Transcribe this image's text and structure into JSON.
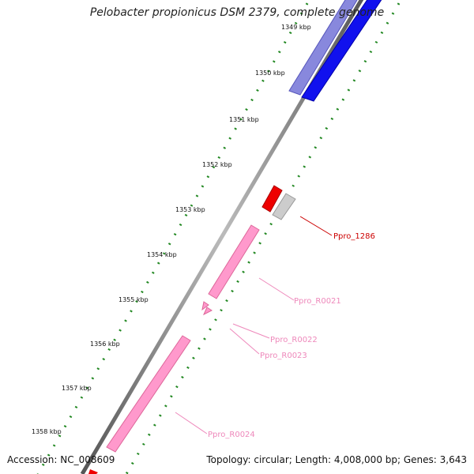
{
  "title": "Pelobacter propionicus DSM 2379, complete genome",
  "accession": "Accession: NC_008609",
  "summary": "Topology: circular; Length: 4,008,000 bp; Genes: 3,643",
  "ticks": [
    {
      "label": "1349 kbp"
    },
    {
      "label": "1350 kbp"
    },
    {
      "label": "1351 kbp"
    },
    {
      "label": "1352 kbp"
    },
    {
      "label": "1353 kbp"
    },
    {
      "label": "1354 kbp"
    },
    {
      "label": "1355 kbp"
    },
    {
      "label": "1356 kbp"
    },
    {
      "label": "1357 kbp"
    },
    {
      "label": "1358 kbp"
    }
  ],
  "feature_labels": [
    {
      "label": "Ppro_1286",
      "color": "#cc0000"
    },
    {
      "label": "Ppro_R0021",
      "color": "#ee88bb"
    },
    {
      "label": "Ppro_R0022",
      "color": "#ee88bb"
    },
    {
      "label": "Ppro_R0023",
      "color": "#ee88bb"
    },
    {
      "label": "Ppro_R0024",
      "color": "#ee88bb"
    }
  ],
  "colors": {
    "backbone": "#888888",
    "tick_dots": "#228822",
    "cds_forward": "#0000ee",
    "cds_forward_light": "#7777dd",
    "cds_red": "#ee0000",
    "cds_grey": "#bbbbbb",
    "rna_pink": "#ff99cc"
  }
}
